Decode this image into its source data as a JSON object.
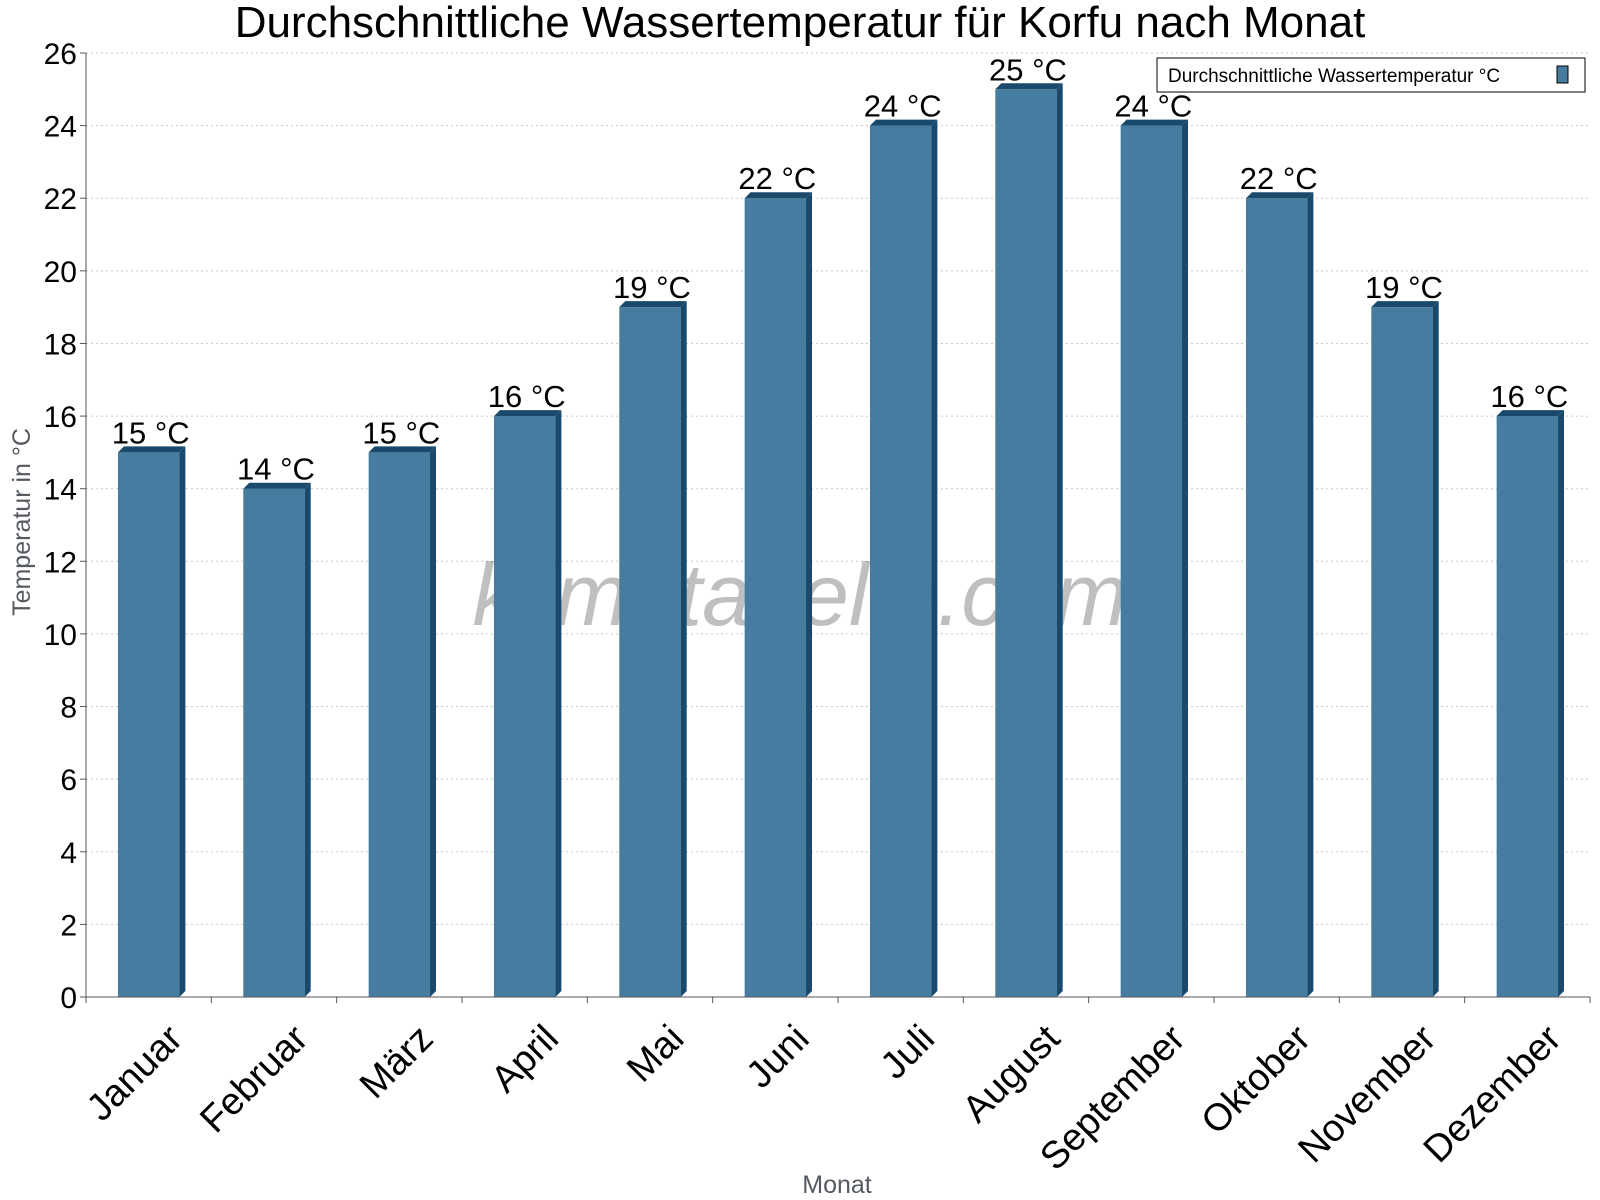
{
  "chart_data": {
    "type": "bar",
    "title": "Durchschnittliche Wassertemperatur für Korfu nach Monat",
    "xlabel": "Monat",
    "ylabel": "Temperatur in °C",
    "categories": [
      "Januar",
      "Februar",
      "März",
      "April",
      "Mai",
      "Juni",
      "Juli",
      "August",
      "September",
      "Oktober",
      "November",
      "Dezember"
    ],
    "series": [
      {
        "name": "Durchschnittliche Wassertemperatur °C",
        "values": [
          15,
          14,
          15,
          16,
          19,
          22,
          24,
          25,
          24,
          22,
          19,
          16
        ],
        "labels": [
          "15 °C",
          "14 °C",
          "15 °C",
          "16 °C",
          "19 °C",
          "22 °C",
          "24 °C",
          "25 °C",
          "24 °C",
          "22 °C",
          "19 °C",
          "16 °C"
        ],
        "color": "#467c9f",
        "edge_color": "#1a4a6b"
      }
    ],
    "ylim": [
      0,
      26
    ],
    "yticks": [
      0,
      2,
      4,
      6,
      8,
      10,
      12,
      14,
      16,
      18,
      20,
      22,
      24,
      26
    ],
    "grid": true,
    "legend_position": "top-right",
    "watermark": "klimatabelle.com"
  }
}
